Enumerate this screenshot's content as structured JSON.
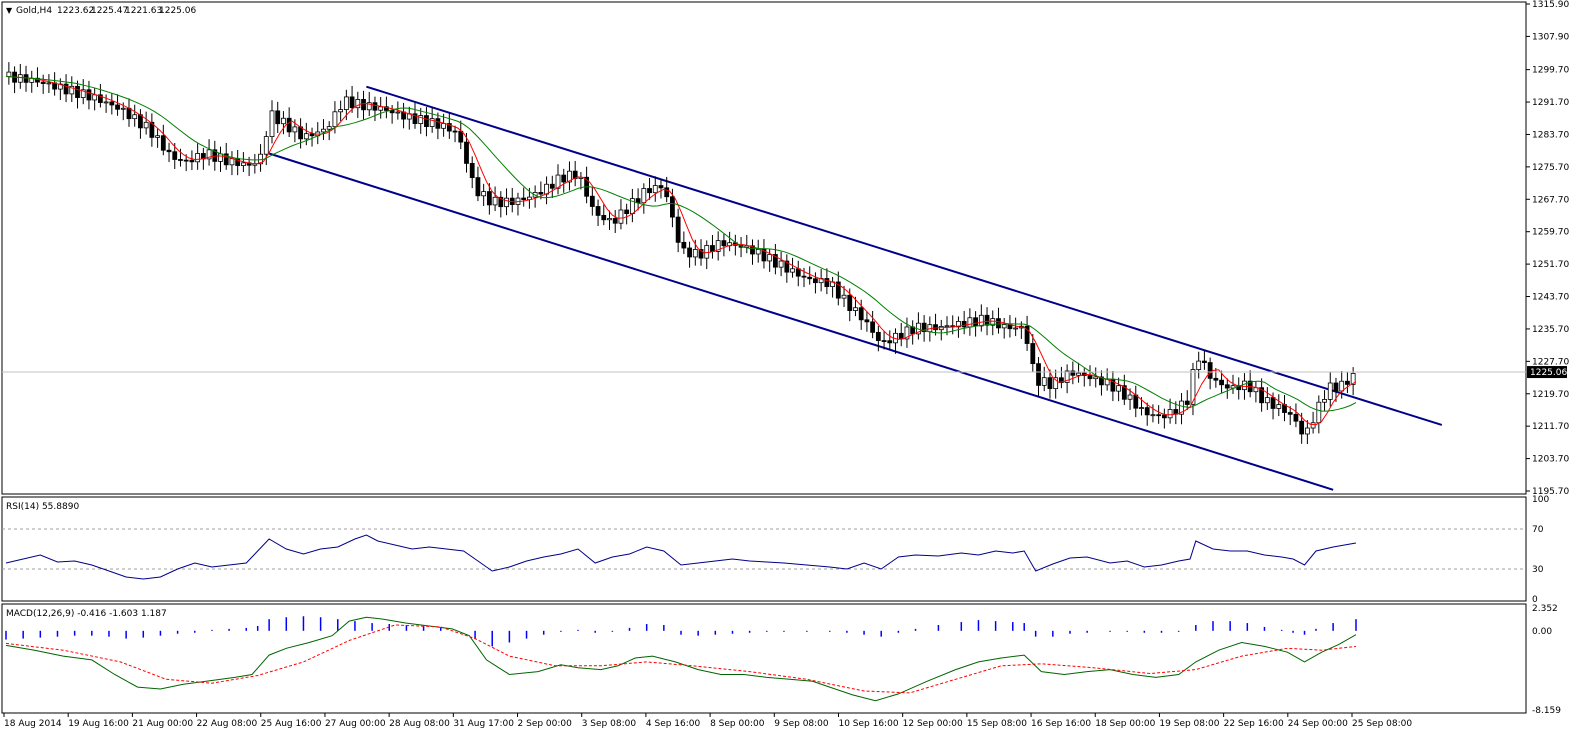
{
  "header": {
    "symbol": "Gold,H4",
    "open": "1223.62",
    "high": "1225.47",
    "low": "1221.63",
    "close": "1225.06"
  },
  "colors": {
    "channel": "#00008b",
    "ma_fast": "#ff0000",
    "ma_slow_up": "#008000",
    "ma_slow_down": "#ffff00",
    "rsi": "#00008b",
    "macd_hist": "#0000ff",
    "macd_line": "#006400",
    "macd_signal": "#ff0000",
    "current_price_bg": "#000000"
  },
  "chart_data": {
    "type": "candlestick",
    "price_axis": {
      "ylim": [
        1195.7,
        1315.9
      ],
      "ticks": [
        "1315.90",
        "1307.90",
        "1299.70",
        "1291.70",
        "1283.70",
        "1275.70",
        "1267.70",
        "1259.70",
        "1251.70",
        "1243.70",
        "1235.70",
        "1227.70",
        "1219.70",
        "1211.70",
        "1203.70",
        "1195.70"
      ],
      "current_price": "1225.06"
    },
    "x_ticks": [
      "18 Aug 2014",
      "19 Aug 16:00",
      "21 Aug 00:00",
      "22 Aug 08:00",
      "25 Aug 16:00",
      "27 Aug 00:00",
      "28 Aug 08:00",
      "31 Aug 17:00",
      "2 Sep 00:00",
      "3 Sep 08:00",
      "4 Sep 16:00",
      "8 Sep 00:00",
      "9 Sep 08:00",
      "10 Sep 16:00",
      "12 Sep 00:00",
      "15 Sep 08:00",
      "16 Sep 16:00",
      "18 Sep 00:00",
      "19 Sep 08:00",
      "22 Sep 16:00",
      "24 Sep 00:00",
      "25 Sep 08:00"
    ],
    "close_path": [
      [
        0,
        1298
      ],
      [
        10,
        1297
      ],
      [
        20,
        1295
      ],
      [
        30,
        1293
      ],
      [
        40,
        1290
      ],
      [
        50,
        1285
      ],
      [
        58,
        1278
      ],
      [
        63,
        1277
      ],
      [
        70,
        1279
      ],
      [
        78,
        1277
      ],
      [
        86,
        1276
      ],
      [
        90,
        1279
      ],
      [
        92,
        1289
      ],
      [
        98,
        1286
      ],
      [
        104,
        1283
      ],
      [
        112,
        1285
      ],
      [
        118,
        1292
      ],
      [
        124,
        1291
      ],
      [
        132,
        1290
      ],
      [
        140,
        1288
      ],
      [
        146,
        1287
      ],
      [
        152,
        1286
      ],
      [
        158,
        1284
      ],
      [
        164,
        1270
      ],
      [
        170,
        1267
      ],
      [
        176,
        1267
      ],
      [
        182,
        1268
      ],
      [
        188,
        1270
      ],
      [
        194,
        1273
      ],
      [
        200,
        1274
      ],
      [
        206,
        1264
      ],
      [
        212,
        1262
      ],
      [
        218,
        1266
      ],
      [
        224,
        1270
      ],
      [
        230,
        1271
      ],
      [
        236,
        1255
      ],
      [
        242,
        1254
      ],
      [
        250,
        1257
      ],
      [
        258,
        1256
      ],
      [
        264,
        1254
      ],
      [
        272,
        1251
      ],
      [
        280,
        1248
      ],
      [
        288,
        1247
      ],
      [
        294,
        1242
      ],
      [
        300,
        1238
      ],
      [
        306,
        1232
      ],
      [
        312,
        1234
      ],
      [
        318,
        1236
      ],
      [
        326,
        1236
      ],
      [
        334,
        1237
      ],
      [
        342,
        1238
      ],
      [
        350,
        1236
      ],
      [
        356,
        1236
      ],
      [
        360,
        1223
      ],
      [
        366,
        1222
      ],
      [
        372,
        1225
      ],
      [
        378,
        1224
      ],
      [
        386,
        1222
      ],
      [
        392,
        1219
      ],
      [
        398,
        1215
      ],
      [
        404,
        1214
      ],
      [
        410,
        1216
      ],
      [
        414,
        1219
      ],
      [
        416,
        1230
      ],
      [
        422,
        1223
      ],
      [
        428,
        1221
      ],
      [
        434,
        1222
      ],
      [
        440,
        1218
      ],
      [
        446,
        1216
      ],
      [
        450,
        1214
      ],
      [
        454,
        1209
      ],
      [
        458,
        1215
      ],
      [
        462,
        1221
      ],
      [
        468,
        1222
      ],
      [
        472,
        1225
      ]
    ],
    "rsi": {
      "label": "RSI(14) 55.8890",
      "ticks": [
        "100",
        "70",
        "30",
        "0"
      ],
      "levels": [
        70,
        30
      ],
      "values": [
        [
          0,
          36
        ],
        [
          6,
          40
        ],
        [
          12,
          44
        ],
        [
          18,
          37
        ],
        [
          24,
          38
        ],
        [
          30,
          34
        ],
        [
          36,
          28
        ],
        [
          42,
          22
        ],
        [
          48,
          20
        ],
        [
          54,
          22
        ],
        [
          60,
          30
        ],
        [
          66,
          36
        ],
        [
          72,
          32
        ],
        [
          78,
          34
        ],
        [
          84,
          36
        ],
        [
          92,
          60
        ],
        [
          98,
          50
        ],
        [
          104,
          45
        ],
        [
          110,
          50
        ],
        [
          116,
          52
        ],
        [
          122,
          60
        ],
        [
          126,
          64
        ],
        [
          130,
          58
        ],
        [
          136,
          54
        ],
        [
          142,
          50
        ],
        [
          148,
          52
        ],
        [
          154,
          50
        ],
        [
          160,
          48
        ],
        [
          164,
          40
        ],
        [
          170,
          28
        ],
        [
          176,
          32
        ],
        [
          182,
          38
        ],
        [
          188,
          42
        ],
        [
          194,
          45
        ],
        [
          200,
          50
        ],
        [
          206,
          36
        ],
        [
          212,
          42
        ],
        [
          218,
          45
        ],
        [
          224,
          52
        ],
        [
          230,
          48
        ],
        [
          236,
          34
        ],
        [
          242,
          36
        ],
        [
          248,
          38
        ],
        [
          254,
          40
        ],
        [
          260,
          38
        ],
        [
          266,
          37
        ],
        [
          272,
          36
        ],
        [
          280,
          34
        ],
        [
          288,
          32
        ],
        [
          294,
          30
        ],
        [
          300,
          36
        ],
        [
          306,
          30
        ],
        [
          312,
          42
        ],
        [
          318,
          44
        ],
        [
          326,
          43
        ],
        [
          334,
          46
        ],
        [
          340,
          44
        ],
        [
          346,
          48
        ],
        [
          352,
          46
        ],
        [
          356,
          48
        ],
        [
          360,
          28
        ],
        [
          366,
          35
        ],
        [
          372,
          41
        ],
        [
          378,
          42
        ],
        [
          386,
          36
        ],
        [
          392,
          38
        ],
        [
          398,
          32
        ],
        [
          404,
          34
        ],
        [
          410,
          38
        ],
        [
          414,
          40
        ],
        [
          416,
          58
        ],
        [
          422,
          50
        ],
        [
          428,
          48
        ],
        [
          434,
          48
        ],
        [
          440,
          44
        ],
        [
          446,
          42
        ],
        [
          450,
          40
        ],
        [
          454,
          34
        ],
        [
          458,
          48
        ],
        [
          464,
          52
        ],
        [
          472,
          56
        ]
      ]
    },
    "macd": {
      "label": "MACD(12,26,9) -0.416 -1.603 1.187",
      "ticks": [
        "2.352",
        "0.00",
        "-8.159"
      ],
      "ylim": [
        -8.159,
        2.352
      ],
      "main": [
        [
          0,
          -1.5
        ],
        [
          10,
          -2.0
        ],
        [
          20,
          -2.6
        ],
        [
          30,
          -3.0
        ],
        [
          38,
          -4.5
        ],
        [
          46,
          -5.8
        ],
        [
          54,
          -6.0
        ],
        [
          62,
          -5.5
        ],
        [
          70,
          -5.2
        ],
        [
          80,
          -4.8
        ],
        [
          86,
          -4.5
        ],
        [
          92,
          -2.5
        ],
        [
          98,
          -1.8
        ],
        [
          106,
          -1.2
        ],
        [
          114,
          -0.5
        ],
        [
          120,
          1.0
        ],
        [
          126,
          1.4
        ],
        [
          132,
          1.2
        ],
        [
          140,
          0.8
        ],
        [
          148,
          0.5
        ],
        [
          156,
          0.2
        ],
        [
          162,
          -0.5
        ],
        [
          168,
          -3.0
        ],
        [
          176,
          -4.5
        ],
        [
          186,
          -4.2
        ],
        [
          194,
          -3.5
        ],
        [
          200,
          -3.8
        ],
        [
          208,
          -4.0
        ],
        [
          214,
          -3.6
        ],
        [
          220,
          -2.8
        ],
        [
          226,
          -2.6
        ],
        [
          234,
          -3.2
        ],
        [
          242,
          -4.0
        ],
        [
          250,
          -4.5
        ],
        [
          258,
          -4.5
        ],
        [
          266,
          -4.8
        ],
        [
          274,
          -5.0
        ],
        [
          282,
          -5.2
        ],
        [
          288,
          -5.8
        ],
        [
          296,
          -6.6
        ],
        [
          304,
          -7.2
        ],
        [
          312,
          -6.5
        ],
        [
          322,
          -5.2
        ],
        [
          332,
          -4.0
        ],
        [
          340,
          -3.2
        ],
        [
          348,
          -2.8
        ],
        [
          356,
          -2.5
        ],
        [
          362,
          -4.2
        ],
        [
          370,
          -4.5
        ],
        [
          378,
          -4.2
        ],
        [
          386,
          -4.0
        ],
        [
          394,
          -4.5
        ],
        [
          402,
          -4.8
        ],
        [
          410,
          -4.5
        ],
        [
          416,
          -3.2
        ],
        [
          424,
          -2.0
        ],
        [
          432,
          -1.2
        ],
        [
          440,
          -1.6
        ],
        [
          448,
          -2.2
        ],
        [
          454,
          -3.2
        ],
        [
          460,
          -2.2
        ],
        [
          466,
          -1.4
        ],
        [
          472,
          -0.4
        ]
      ],
      "signal": [
        [
          0,
          -1.3
        ],
        [
          20,
          -2.0
        ],
        [
          40,
          -3.2
        ],
        [
          56,
          -5.0
        ],
        [
          72,
          -5.4
        ],
        [
          88,
          -4.6
        ],
        [
          104,
          -3.2
        ],
        [
          120,
          -1.0
        ],
        [
          136,
          0.6
        ],
        [
          152,
          0.4
        ],
        [
          164,
          -0.8
        ],
        [
          176,
          -2.6
        ],
        [
          192,
          -3.6
        ],
        [
          208,
          -3.6
        ],
        [
          224,
          -3.2
        ],
        [
          240,
          -3.6
        ],
        [
          260,
          -4.2
        ],
        [
          280,
          -5.0
        ],
        [
          300,
          -6.2
        ],
        [
          316,
          -6.4
        ],
        [
          332,
          -5.0
        ],
        [
          348,
          -3.6
        ],
        [
          362,
          -3.4
        ],
        [
          380,
          -3.8
        ],
        [
          400,
          -4.4
        ],
        [
          416,
          -4.0
        ],
        [
          432,
          -2.6
        ],
        [
          448,
          -1.8
        ],
        [
          460,
          -2.0
        ],
        [
          472,
          -1.6
        ]
      ],
      "hist": [
        [
          0,
          -0.9
        ],
        [
          6,
          -0.8
        ],
        [
          12,
          -0.7
        ],
        [
          18,
          -0.6
        ],
        [
          24,
          -0.5
        ],
        [
          30,
          -0.5
        ],
        [
          36,
          -0.6
        ],
        [
          42,
          -0.8
        ],
        [
          48,
          -0.7
        ],
        [
          54,
          -0.5
        ],
        [
          60,
          -0.3
        ],
        [
          66,
          -0.2
        ],
        [
          72,
          0.1
        ],
        [
          78,
          0.2
        ],
        [
          84,
          0.3
        ],
        [
          88,
          0.5
        ],
        [
          92,
          1.2
        ],
        [
          98,
          1.4
        ],
        [
          104,
          1.5
        ],
        [
          110,
          1.4
        ],
        [
          116,
          1.2
        ],
        [
          122,
          1.0
        ],
        [
          128,
          0.8
        ],
        [
          134,
          0.7
        ],
        [
          140,
          0.6
        ],
        [
          146,
          0.5
        ],
        [
          152,
          0.3
        ],
        [
          158,
          0.0
        ],
        [
          164,
          -0.8
        ],
        [
          170,
          -1.6
        ],
        [
          176,
          -1.2
        ],
        [
          182,
          -0.8
        ],
        [
          188,
          -0.4
        ],
        [
          194,
          -0.1
        ],
        [
          200,
          0.1
        ],
        [
          206,
          -0.2
        ],
        [
          212,
          -0.1
        ],
        [
          218,
          0.3
        ],
        [
          224,
          0.7
        ],
        [
          230,
          0.6
        ],
        [
          236,
          -0.4
        ],
        [
          242,
          -0.5
        ],
        [
          248,
          -0.4
        ],
        [
          254,
          -0.3
        ],
        [
          260,
          -0.2
        ],
        [
          266,
          -0.1
        ],
        [
          272,
          -0.1
        ],
        [
          280,
          -0.1
        ],
        [
          288,
          -0.1
        ],
        [
          294,
          -0.2
        ],
        [
          300,
          -0.4
        ],
        [
          306,
          -0.6
        ],
        [
          312,
          -0.2
        ],
        [
          318,
          0.2
        ],
        [
          326,
          0.6
        ],
        [
          334,
          0.9
        ],
        [
          340,
          1.1
        ],
        [
          346,
          1.0
        ],
        [
          352,
          0.9
        ],
        [
          356,
          0.8
        ],
        [
          360,
          -0.6
        ],
        [
          366,
          -0.6
        ],
        [
          372,
          -0.3
        ],
        [
          378,
          -0.2
        ],
        [
          386,
          -0.1
        ],
        [
          392,
          -0.1
        ],
        [
          398,
          -0.2
        ],
        [
          404,
          -0.2
        ],
        [
          410,
          -0.1
        ],
        [
          416,
          0.6
        ],
        [
          422,
          1.0
        ],
        [
          428,
          1.0
        ],
        [
          434,
          0.8
        ],
        [
          440,
          0.4
        ],
        [
          446,
          0.1
        ],
        [
          450,
          -0.2
        ],
        [
          454,
          -0.4
        ],
        [
          458,
          0.2
        ],
        [
          464,
          0.8
        ],
        [
          472,
          1.2
        ]
      ]
    }
  }
}
